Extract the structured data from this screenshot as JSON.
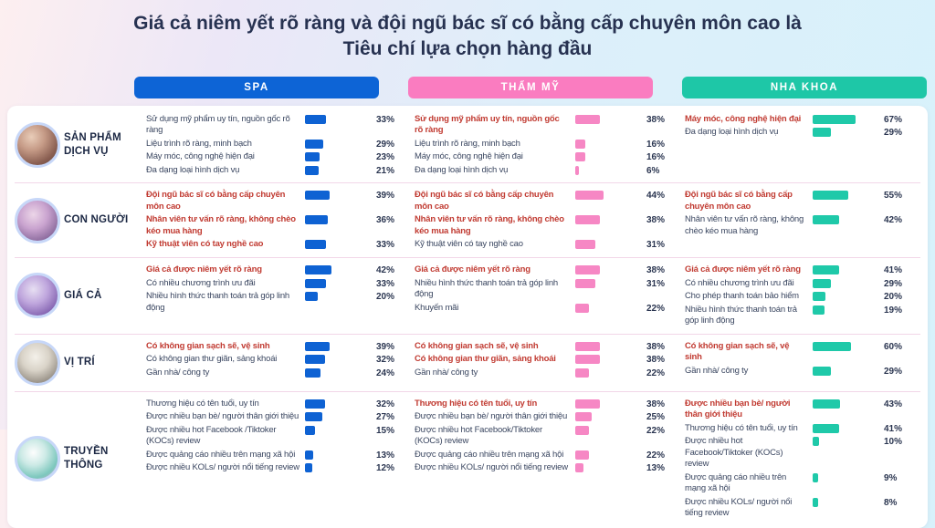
{
  "header": {
    "title_line1": "Giá cả niêm yết rõ ràng và đội ngũ bác sĩ có bằng cấp chuyên môn cao là",
    "title_line2": "Tiêu chí lựa chọn hàng đầu"
  },
  "columns": [
    {
      "id": "spa",
      "label": "SPA",
      "header_color": "#0d64d6",
      "bar_color": "#0e62d3"
    },
    {
      "id": "tham-my",
      "label": "THẨM MỸ",
      "header_color": "#fa7cc0",
      "bar_color": "#f687c4"
    },
    {
      "id": "nha-khoa",
      "label": "NHA KHOA",
      "header_color": "#1ec7a7",
      "bar_color": "#1fc9a9"
    }
  ],
  "colors": {
    "highlight_text": "#c13b32",
    "normal_text": "#3a4660",
    "category_text": "#1c2844",
    "title_text": "#273251",
    "separator": "#f2d7e8",
    "card_background": "#ffffff"
  },
  "chart_data": {
    "type": "bar",
    "orientation": "horizontal",
    "unit": "%",
    "xlim": [
      0,
      100
    ],
    "title": "Giá cả niêm yết rõ ràng và đội ngũ bác sĩ có bằng cấp chuyên môn cao là Tiêu chí lựa chọn hàng đầu",
    "legend": [
      "SPA",
      "THẨM MỸ",
      "NHA KHOA"
    ],
    "legend_position": "top",
    "groups": [
      {
        "category": "SẢN PHẨM DỊCH VỤ",
        "icon": "massage-spa-photo-icon",
        "cells": [
          [
            {
              "label": "Sử dụng mỹ phẩm uy tín, nguồn gốc rõ ràng",
              "value": 33,
              "highlight": false
            },
            {
              "label": "Liệu trình rõ ràng, minh bạch",
              "value": 29,
              "highlight": false
            },
            {
              "label": "Máy móc, công nghệ hiện đại",
              "value": 23,
              "highlight": false
            },
            {
              "label": "Đa dạng loại hình dịch vụ",
              "value": 21,
              "highlight": false
            }
          ],
          [
            {
              "label": "Sử dụng mỹ phẩm uy tín, nguồn gốc rõ ràng",
              "value": 38,
              "highlight": true
            },
            {
              "label": "Liệu trình rõ ràng, minh bạch",
              "value": 16,
              "highlight": false
            },
            {
              "label": "Máy móc, công nghệ hiện đại",
              "value": 16,
              "highlight": false
            },
            {
              "label": "Đa dạng loại hình dịch vụ",
              "value": 6,
              "highlight": false
            }
          ],
          [
            {
              "label": "Máy móc, công nghệ hiện đại",
              "value": 67,
              "highlight": true
            },
            {
              "label": "Đa dạng loại hình dịch vụ",
              "value": 29,
              "highlight": false
            }
          ]
        ]
      },
      {
        "category": "CON NGƯỜI",
        "icon": "facial-treatment-photo-icon",
        "cells": [
          [
            {
              "label": "Đội ngũ bác sĩ có bằng cấp chuyên môn cao",
              "value": 39,
              "highlight": true
            },
            {
              "label": "Nhân viên tư vấn rõ ràng, không chèo kéo mua hàng",
              "value": 36,
              "highlight": true
            },
            {
              "label": "Kỹ thuật viên có tay nghề cao",
              "value": 33,
              "highlight": true
            }
          ],
          [
            {
              "label": "Đội ngũ bác sĩ có bằng cấp chuyên môn cao",
              "value": 44,
              "highlight": true
            },
            {
              "label": "Nhân viên tư vấn rõ ràng, không chèo kéo mua hàng",
              "value": 38,
              "highlight": true
            },
            {
              "label": "Kỹ thuật viên có tay nghề cao",
              "value": 31,
              "highlight": false
            }
          ],
          [
            {
              "label": "Đội ngũ bác sĩ có bằng cấp chuyên môn cao",
              "value": 55,
              "highlight": true
            },
            {
              "label": "Nhân viên tư vấn rõ ràng, không chèo kéo mua hàng",
              "value": 42,
              "highlight": false
            }
          ]
        ]
      },
      {
        "category": "GIÁ CẢ",
        "icon": "payment-price-photo-icon",
        "cells": [
          [
            {
              "label": "Giá cả được niêm yết rõ ràng",
              "value": 42,
              "highlight": true
            },
            {
              "label": "Có nhiều chương trình ưu đãi",
              "value": 33,
              "highlight": false
            },
            {
              "label": "Nhiều hình thức thanh toán trả góp linh động",
              "value": 20,
              "highlight": false
            }
          ],
          [
            {
              "label": "Giá cả được niêm yết rõ ràng",
              "value": 38,
              "highlight": true
            },
            {
              "label": "Nhiều hình thức thanh toán trả góp linh động",
              "value": 31,
              "highlight": false
            },
            {
              "label": "Khuyến mãi",
              "value": 22,
              "highlight": false
            }
          ],
          [
            {
              "label": "Giá cả được niêm yết rõ ràng",
              "value": 41,
              "highlight": true
            },
            {
              "label": "Có nhiều chương trình ưu đãi",
              "value": 29,
              "highlight": false
            },
            {
              "label": "Cho phép thanh toán bảo hiểm",
              "value": 20,
              "highlight": false
            },
            {
              "label": "Nhiều hình thức thanh toán trả góp linh động",
              "value": 19,
              "highlight": false
            }
          ]
        ]
      },
      {
        "category": "VỊ TRÍ",
        "icon": "building-location-photo-icon",
        "cells": [
          [
            {
              "label": "Có không gian sạch sẽ, vệ sinh",
              "value": 39,
              "highlight": true
            },
            {
              "label": "Có không gian thư giãn, sảng khoái",
              "value": 32,
              "highlight": false
            },
            {
              "label": "Gần nhà/ công ty",
              "value": 24,
              "highlight": false
            }
          ],
          [
            {
              "label": "Có không gian sạch sẽ, vệ sinh",
              "value": 38,
              "highlight": true
            },
            {
              "label": "Có không gian thư giãn, sảng khoái",
              "value": 38,
              "highlight": true
            },
            {
              "label": "Gần nhà/ công ty",
              "value": 22,
              "highlight": false
            }
          ],
          [
            {
              "label": "Có không gian sạch sẽ, vệ sinh",
              "value": 60,
              "highlight": true
            },
            {
              "label": "Gần nhà/ công ty",
              "value": 29,
              "highlight": false
            }
          ]
        ]
      },
      {
        "category": "TRUYỀN THÔNG",
        "icon": "doctor-consult-photo-icon",
        "cells": [
          [
            {
              "label": "Thương hiệu có tên tuổi, uy tín",
              "value": 32,
              "highlight": false
            },
            {
              "label": "Được nhiều bạn bè/ người thân giới thiệu",
              "value": 27,
              "highlight": false
            },
            {
              "label": "Được nhiều hot Facebook /Tiktoker (KOCs) review",
              "value": 15,
              "highlight": false
            },
            {
              "label": "Được quảng cáo nhiều trên mạng xã hội",
              "value": 13,
              "highlight": false
            },
            {
              "label": "Được nhiều KOLs/ người nổi tiếng review",
              "value": 12,
              "highlight": false
            }
          ],
          [
            {
              "label": "Thương hiệu có tên tuổi, uy tín",
              "value": 38,
              "highlight": true
            },
            {
              "label": "Được nhiều bạn bè/ người thân giới thiệu",
              "value": 25,
              "highlight": false
            },
            {
              "label": "Được nhiều hot Facebook/Tiktoker (KOCs) review",
              "value": 22,
              "highlight": false
            },
            {
              "label": "Được quảng cáo nhiều trên mạng xã hội",
              "value": 22,
              "highlight": false
            },
            {
              "label": "Được nhiều KOLs/ người nổi tiếng review",
              "value": 13,
              "highlight": false
            }
          ],
          [
            {
              "label": "Được nhiều bạn bè/ người thân giới thiệu",
              "value": 43,
              "highlight": true
            },
            {
              "label": "Thương hiệu có tên tuổi, uy tín",
              "value": 41,
              "highlight": false
            },
            {
              "label": "Được nhiều hot Facebook/Tiktoker (KOCs) review",
              "value": 10,
              "highlight": false
            },
            {
              "label": "Được quảng cáo nhiều trên mạng xã hội",
              "value": 9,
              "highlight": false
            },
            {
              "label": "Được nhiều KOLs/ người nổi tiếng review",
              "value": 8,
              "highlight": false
            }
          ]
        ]
      }
    ]
  }
}
